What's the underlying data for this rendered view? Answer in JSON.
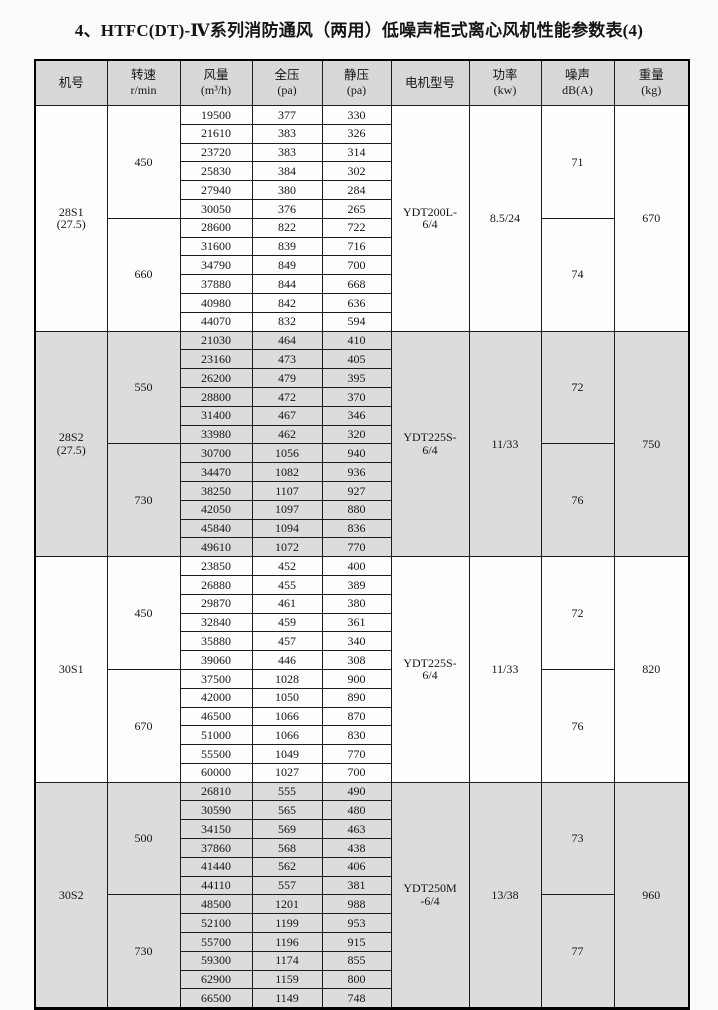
{
  "page": {
    "title": "4、HTFC(DT)-Ⅳ系列消防通风（两用）低噪声柜式离心风机性能参数表(4)"
  },
  "colors": {
    "header_bg": "#d8d8d8",
    "shaded_row_bg": "#dcdcdc",
    "border": "#1c1c1c",
    "text": "#151515"
  },
  "table": {
    "columns": [
      {
        "key": "model",
        "label": "机号",
        "sub": ""
      },
      {
        "key": "speed",
        "label": "转速",
        "sub": "r/min"
      },
      {
        "key": "flow",
        "label": "风量",
        "sub": "(m³/h)"
      },
      {
        "key": "full-pressure",
        "label": "全压",
        "sub": "(pa)"
      },
      {
        "key": "static-pressure",
        "label": "静压",
        "sub": "(pa)"
      },
      {
        "key": "motor",
        "label": "电机型号",
        "sub": ""
      },
      {
        "key": "power",
        "label": "功率",
        "sub": "(kw)"
      },
      {
        "key": "noise",
        "label": "噪声",
        "sub": "dB(A)"
      },
      {
        "key": "weight",
        "label": "重量",
        "sub": "(kg)"
      }
    ],
    "sections": [
      {
        "model_line1": "28S1",
        "model_line2": "(27.5)",
        "motor_line1": "YDT200L-",
        "motor_line2": "6/4",
        "power": "8.5/24",
        "weight": "670",
        "shaded": false,
        "groups": [
          {
            "speed": "450",
            "noise": "71",
            "thick_after": [
              3
            ],
            "rows": [
              [
                19500,
                377,
                330
              ],
              [
                21610,
                383,
                326
              ],
              [
                23720,
                383,
                314
              ],
              [
                25830,
                384,
                302
              ],
              [
                27940,
                380,
                284
              ],
              [
                30050,
                376,
                265
              ]
            ]
          },
          {
            "speed": "660",
            "noise": "74",
            "thick_after": [
              2
            ],
            "rows": [
              [
                28600,
                822,
                722
              ],
              [
                31600,
                839,
                716
              ],
              [
                34790,
                849,
                700
              ],
              [
                37880,
                844,
                668
              ],
              [
                40980,
                842,
                636
              ],
              [
                44070,
                832,
                594
              ]
            ]
          }
        ]
      },
      {
        "model_line1": "28S2",
        "model_line2": "(27.5)",
        "motor_line1": "YDT225S-",
        "motor_line2": "6/4",
        "power": "11/33",
        "weight": "750",
        "shaded": true,
        "groups": [
          {
            "speed": "550",
            "noise": "72",
            "thick_after": [
              1
            ],
            "rows": [
              [
                21030,
                464,
                410
              ],
              [
                23160,
                473,
                405
              ],
              [
                26200,
                479,
                395
              ],
              [
                28800,
                472,
                370
              ],
              [
                31400,
                467,
                346
              ],
              [
                33980,
                462,
                320
              ]
            ]
          },
          {
            "speed": "730",
            "noise": "76",
            "thick_after": [
              0,
              4
            ],
            "rows": [
              [
                30700,
                1056,
                940
              ],
              [
                34470,
                1082,
                936
              ],
              [
                38250,
                1107,
                927
              ],
              [
                42050,
                1097,
                880
              ],
              [
                45840,
                1094,
                836
              ],
              [
                49610,
                1072,
                770
              ]
            ]
          }
        ]
      },
      {
        "model_line1": "30S1",
        "model_line2": "",
        "motor_line1": "YDT225S-",
        "motor_line2": "6/4",
        "power": "11/33",
        "weight": "820",
        "shaded": false,
        "groups": [
          {
            "speed": "450",
            "noise": "72",
            "thick_after": [
              4
            ],
            "rows": [
              [
                23850,
                452,
                400
              ],
              [
                26880,
                455,
                389
              ],
              [
                29870,
                461,
                380
              ],
              [
                32840,
                459,
                361
              ],
              [
                35880,
                457,
                340
              ],
              [
                39060,
                446,
                308
              ]
            ]
          },
          {
            "speed": "670",
            "noise": "76",
            "thick_after": [
              2
            ],
            "rows": [
              [
                37500,
                1028,
                900
              ],
              [
                42000,
                1050,
                890
              ],
              [
                46500,
                1066,
                870
              ],
              [
                51000,
                1066,
                830
              ],
              [
                55500,
                1049,
                770
              ],
              [
                60000,
                1027,
                700
              ]
            ]
          }
        ]
      },
      {
        "model_line1": "30S2",
        "model_line2": "",
        "motor_line1": "YDT250M",
        "motor_line2": "-6/4",
        "power": "13/38",
        "weight": "960",
        "shaded": true,
        "groups": [
          {
            "speed": "500",
            "noise": "73",
            "thick_after": [],
            "rows": [
              [
                26810,
                555,
                490
              ],
              [
                30590,
                565,
                480
              ],
              [
                34150,
                569,
                463
              ],
              [
                37860,
                568,
                438
              ],
              [
                41440,
                562,
                406
              ],
              [
                44110,
                557,
                381
              ]
            ]
          },
          {
            "speed": "730",
            "noise": "77",
            "thick_after": [
              0
            ],
            "rows": [
              [
                48500,
                1201,
                988
              ],
              [
                52100,
                1199,
                953
              ],
              [
                55700,
                1196,
                915
              ],
              [
                59300,
                1174,
                855
              ],
              [
                62900,
                1159,
                800
              ],
              [
                66500,
                1149,
                748
              ]
            ]
          }
        ]
      }
    ]
  }
}
